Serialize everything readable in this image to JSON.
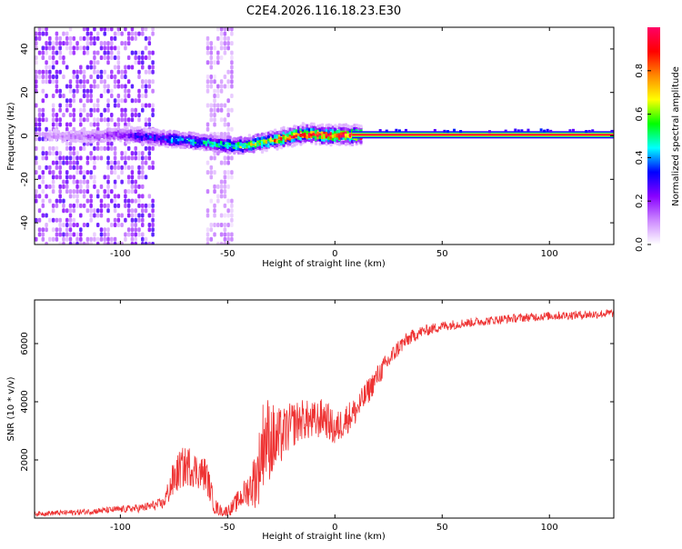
{
  "title": "C2E4.2026.116.18.23.E30",
  "chart_data": [
    {
      "type": "heatmap",
      "xlabel": "Height of straight line (km)",
      "ylabel": "Frequency (Hz)",
      "xlim": [
        -140,
        130
      ],
      "ylim": [
        -50,
        50
      ],
      "xticks": [
        -100,
        -50,
        0,
        50,
        100
      ],
      "yticks": [
        -40,
        -20,
        0,
        20,
        40
      ],
      "xtick_labels": [
        "-100",
        "-50",
        "0",
        "50",
        "100"
      ],
      "ytick_labels": [
        "-40",
        "-20",
        "0",
        "20",
        "40"
      ],
      "colorbar": {
        "label": "Normalized spectral amplitude",
        "range": [
          0,
          1
        ],
        "ticks": [
          0,
          0.2,
          0.4,
          0.6,
          0.8
        ],
        "tick_labels": [
          "0.0",
          "0.2",
          "0.4",
          "0.6",
          "0.8"
        ],
        "colormap": [
          "#ffffff",
          "#cc88ff",
          "#8800ff",
          "#0000ff",
          "#00ffff",
          "#00ff00",
          "#ffff00",
          "#ff8800",
          "#ff0000",
          "#ff0066"
        ]
      },
      "ridge": {
        "x": [
          -130,
          -110,
          -100,
          -90,
          -80,
          -70,
          -60,
          -50,
          -45,
          -40,
          -35,
          -30,
          -25,
          -20,
          -15,
          -10,
          -5,
          0,
          5,
          10,
          130
        ],
        "frequency": [
          0,
          0,
          1,
          0,
          -1,
          -2,
          -3,
          -4,
          -4.5,
          -4,
          -3,
          -2,
          -1,
          0,
          1,
          1,
          0.5,
          0.5,
          0.5,
          0.5,
          0.5
        ],
        "amplitude": [
          0.1,
          0.15,
          0.2,
          0.3,
          0.35,
          0.4,
          0.45,
          0.5,
          0.55,
          0.6,
          0.6,
          0.7,
          0.75,
          0.8,
          0.8,
          0.85,
          0.85,
          0.9,
          0.95,
          0.95,
          0.95
        ]
      },
      "noise_regions": [
        {
          "from": -140,
          "to": -85,
          "level": 0.15
        },
        {
          "from": -60,
          "to": -48,
          "level": 0.08
        }
      ]
    },
    {
      "type": "line",
      "xlabel": "Height of straight line (km)",
      "ylabel": "SNR (10 * v/v)",
      "xlim": [
        -140,
        130
      ],
      "ylim": [
        0,
        7500
      ],
      "xticks": [
        -100,
        -50,
        0,
        50,
        100
      ],
      "yticks": [
        2000,
        4000,
        6000
      ],
      "xtick_labels": [
        "-100",
        "-50",
        "0",
        "50",
        "100"
      ],
      "ytick_labels": [
        "2000",
        "4000",
        "6000"
      ],
      "color": "#ee3333",
      "series": [
        {
          "name": "SNR",
          "x": [
            -140,
            -120,
            -100,
            -90,
            -80,
            -76,
            -72,
            -68,
            -64,
            -60,
            -56,
            -52,
            -48,
            -44,
            -40,
            -36,
            -33,
            -30,
            -27,
            -24,
            -20,
            -15,
            -10,
            -5,
            0,
            5,
            10,
            15,
            20,
            25,
            30,
            35,
            40,
            50,
            60,
            80,
            100,
            120,
            130
          ],
          "y": [
            150,
            200,
            300,
            350,
            500,
            1200,
            1700,
            1800,
            1600,
            1500,
            400,
            200,
            350,
            700,
            1000,
            1500,
            2800,
            2700,
            2600,
            2900,
            3200,
            3400,
            3300,
            3500,
            3000,
            3400,
            3700,
            4300,
            4900,
            5400,
            5900,
            6200,
            6400,
            6600,
            6700,
            6850,
            6950,
            7000,
            7050
          ],
          "jitter": [
            80,
            100,
            120,
            150,
            200,
            600,
            700,
            700,
            600,
            600,
            300,
            150,
            250,
            400,
            600,
            1200,
            1600,
            1400,
            1200,
            900,
            800,
            700,
            700,
            650,
            600,
            550,
            500,
            450,
            400,
            350,
            300,
            250,
            200,
            180,
            160,
            150,
            150,
            150,
            150
          ]
        }
      ]
    }
  ]
}
